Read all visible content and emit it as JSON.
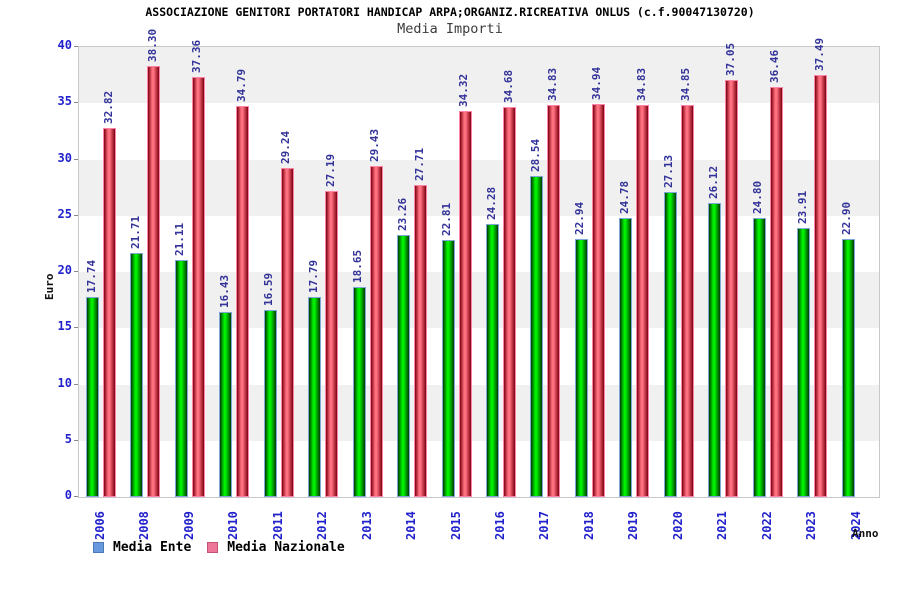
{
  "title": "ASSOCIAZIONE GENITORI PORTATORI HANDICAP ARPA;ORGANIZ.RICREATIVA ONLUS (c.f.90047130720)",
  "subtitle": "Media Importi",
  "chart_data": {
    "type": "bar",
    "title": "ASSOCIAZIONE GENITORI PORTATORI HANDICAP ARPA;ORGANIZ.RICREATIVA ONLUS (c.f.90047130720)",
    "subtitle": "Media Importi",
    "xlabel": "Anno",
    "ylabel": "Euro",
    "ylim": [
      0,
      40
    ],
    "ytick_step": 5,
    "grid": "alternating-horizontal-bands",
    "band_color": "#f0f0f0",
    "legend_position": "bottom-left",
    "axis_label_color": "#2222cc",
    "value_label_color": "#333399",
    "categories": [
      "2006",
      "2008",
      "2009",
      "2010",
      "2011",
      "2012",
      "2013",
      "2014",
      "2015",
      "2016",
      "2017",
      "2018",
      "2019",
      "2020",
      "2021",
      "2022",
      "2023",
      "2024"
    ],
    "series": [
      {
        "name": "Media Ente",
        "legend_color": "#6699dd",
        "legend_border": "#4a7ab5",
        "fill_bright": "#00ee00",
        "fill_dark": "#003b00",
        "outline": "#7fa8d9",
        "values": [
          17.74,
          21.71,
          21.11,
          16.43,
          16.59,
          17.79,
          18.65,
          23.26,
          22.81,
          24.28,
          28.54,
          22.94,
          24.78,
          27.13,
          26.12,
          24.8,
          23.91,
          22.9
        ]
      },
      {
        "name": "Media Nazionale",
        "legend_color": "#ee7799",
        "legend_border": "#c05577",
        "fill_bright": "#ff7080",
        "fill_dark": "#7e0010",
        "outline": "#ff85a8",
        "values": [
          32.82,
          38.3,
          37.36,
          34.79,
          29.24,
          27.19,
          29.43,
          27.71,
          34.32,
          34.68,
          34.83,
          34.94,
          34.83,
          34.85,
          37.05,
          36.46,
          37.49,
          null
        ]
      }
    ]
  }
}
